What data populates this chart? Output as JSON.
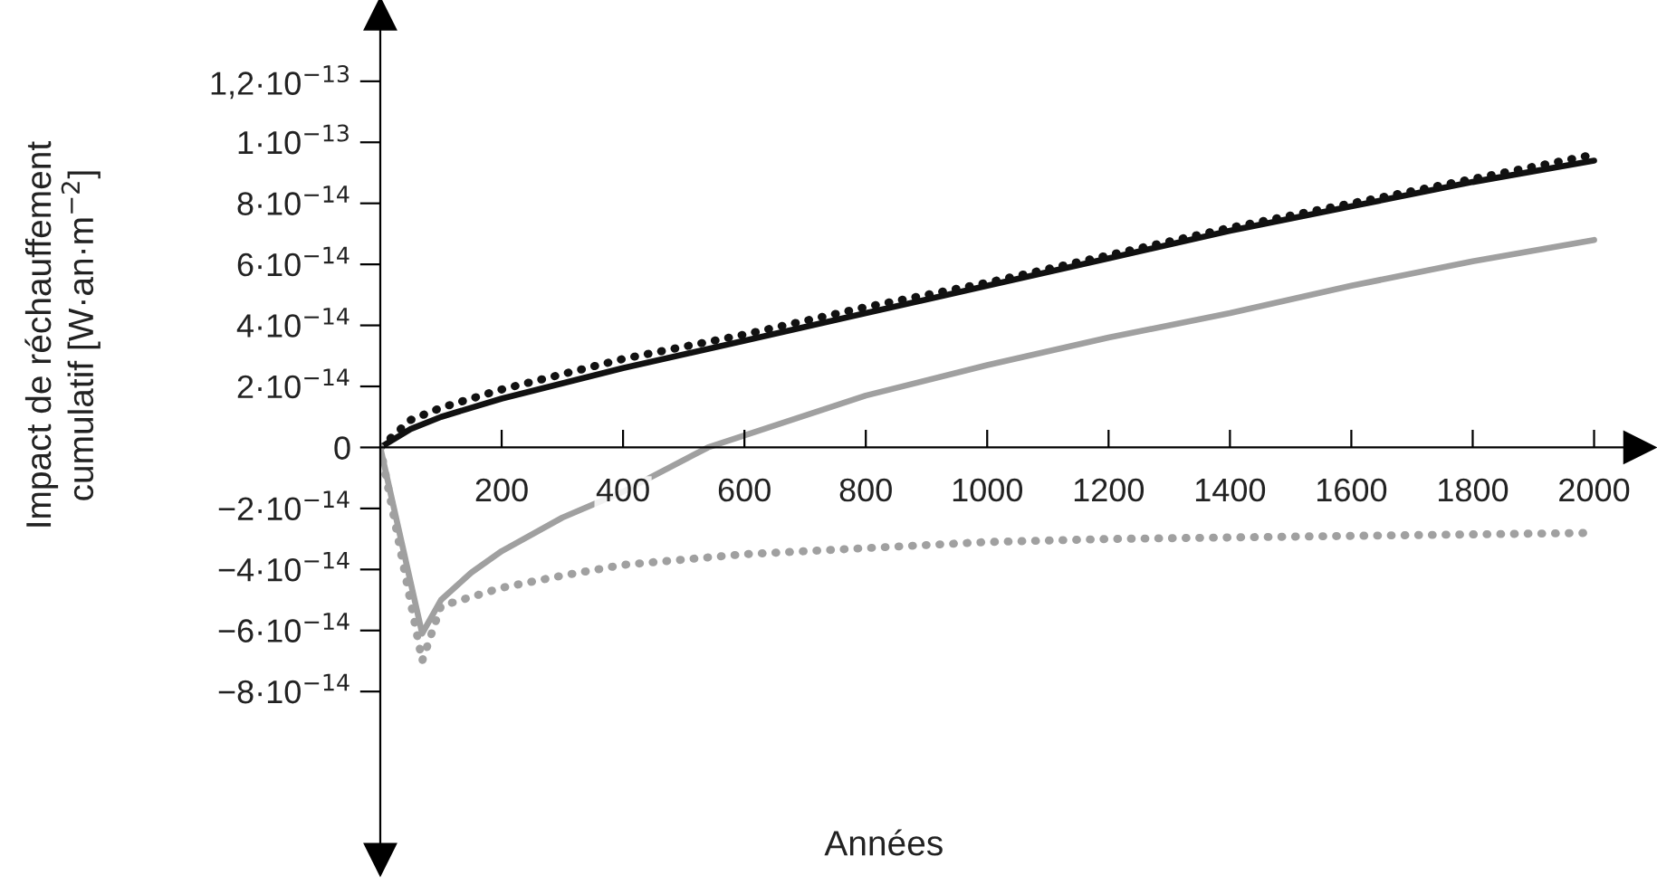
{
  "chart_data": {
    "type": "line",
    "xlabel": "Années",
    "ylabel": "Impact de réchauffement\ncumulatif [W·an·m$^{−2}$]",
    "xlim": [
      0,
      2075
    ],
    "ylim": [
      -1.35e-13,
      1.42e-13
    ],
    "xticks": [
      200,
      400,
      600,
      800,
      1000,
      1200,
      1400,
      1600,
      1800,
      2000
    ],
    "yticks": [
      {
        "value": 1.2e-13,
        "label": "1,2·10$^{−13}$"
      },
      {
        "value": 1e-13,
        "label": "1·10$^{−13}$"
      },
      {
        "value": 8e-14,
        "label": "8·10$^{−14}$"
      },
      {
        "value": 6e-14,
        "label": "6·10$^{−14}$"
      },
      {
        "value": 4e-14,
        "label": "4·10$^{−14}$"
      },
      {
        "value": 2e-14,
        "label": "2·10$^{−14}$"
      },
      0,
      {
        "value": -2e-14,
        "label": "−2·10$^{−14}$"
      },
      {
        "value": -4e-14,
        "label": "−4·10$^{−14}$"
      },
      {
        "value": -6e-14,
        "label": "−6·10$^{−14}$"
      },
      {
        "value": -8e-14,
        "label": "−8·10$^{−14}$"
      }
    ],
    "grid": false,
    "series": [
      {
        "color": "#111111",
        "line_style": "solid",
        "x": [
          0,
          50,
          100,
          200,
          400,
          600,
          800,
          1000,
          1200,
          1400,
          1600,
          1800,
          2000
        ],
        "values": [
          0,
          6e-15,
          1e-14,
          1.6e-14,
          2.6e-14,
          3.5e-14,
          4.4e-14,
          5.3e-14,
          6.2e-14,
          7.1e-14,
          7.9e-14,
          8.7e-14,
          9.4e-14
        ]
      },
      {
        "color": "#111111",
        "line_style": "dotted",
        "x": [
          0,
          50,
          100,
          200,
          400,
          600,
          800,
          1000,
          1200,
          1400,
          1600,
          1800,
          2000
        ],
        "values": [
          0,
          9e-15,
          1.3e-14,
          1.9e-14,
          2.9e-14,
          3.7e-14,
          4.6e-14,
          5.4e-14,
          6.3e-14,
          7.2e-14,
          8e-14,
          8.8e-14,
          9.6e-14
        ]
      },
      {
        "color": "#a0a0a0",
        "line_style": "solid",
        "x": [
          0,
          69,
          100,
          150,
          200,
          300,
          400,
          540,
          800,
          1000,
          1200,
          1400,
          1600,
          1800,
          2000
        ],
        "values": [
          0,
          -6.1e-14,
          -5e-14,
          -4.1e-14,
          -3.4e-14,
          -2.3e-14,
          -1.45e-14,
          0,
          1.7e-14,
          2.7e-14,
          3.6e-14,
          4.4e-14,
          5.3e-14,
          6.1e-14,
          6.8e-14
        ]
      },
      {
        "color": "#a0a0a0",
        "line_style": "dotted",
        "x": [
          0,
          69,
          100,
          150,
          200,
          300,
          400,
          600,
          800,
          1000,
          1200,
          1400,
          1600,
          1800,
          2000
        ],
        "values": [
          0,
          -7e-14,
          -5.2e-14,
          -4.9e-14,
          -4.6e-14,
          -4.2e-14,
          -3.85e-14,
          -3.5e-14,
          -3.3e-14,
          -3.1e-14,
          -3e-14,
          -2.95e-14,
          -2.9e-14,
          -2.85e-14,
          -2.8e-14
        ]
      }
    ]
  }
}
